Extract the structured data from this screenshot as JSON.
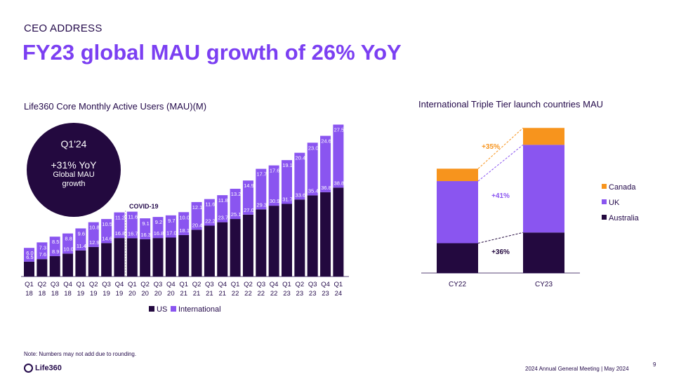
{
  "section_label": "CEO ADDRESS",
  "headline": "FY23 global MAU growth of 26% YoY",
  "badge": {
    "quarter": "Q1'24",
    "yoy": "+31% YoY",
    "line1": "Global MAU",
    "line2": "growth"
  },
  "covid_label": "COVID-19",
  "note": "Note: Numbers may not add due to rounding.",
  "logo_text": "Life360",
  "footer_text": "2024 Annual General Meeting  | May 2024",
  "page_number": "9",
  "colors": {
    "us": "#23093f",
    "international": "#8a55f0",
    "canada": "#f7941d",
    "headline": "#7b3ff2"
  },
  "chart_data": [
    {
      "type": "bar",
      "stacked": true,
      "title": "Life360 Core Monthly Active Users (MAU)(M)",
      "categories": [
        [
          "Q1",
          "18"
        ],
        [
          "Q2",
          "18"
        ],
        [
          "Q3",
          "18"
        ],
        [
          "Q4",
          "18"
        ],
        [
          "Q1",
          "19"
        ],
        [
          "Q2",
          "19"
        ],
        [
          "Q3",
          "19"
        ],
        [
          "Q4",
          "19"
        ],
        [
          "Q1",
          "20"
        ],
        [
          "Q2",
          "20"
        ],
        [
          "Q3",
          "20"
        ],
        [
          "Q4",
          "20"
        ],
        [
          "Q1",
          "21"
        ],
        [
          "Q2",
          "21"
        ],
        [
          "Q3",
          "21"
        ],
        [
          "Q4",
          "21"
        ],
        [
          "Q1",
          "22"
        ],
        [
          "Q2",
          "22"
        ],
        [
          "Q3",
          "22"
        ],
        [
          "Q4",
          "22"
        ],
        [
          "Q1",
          "23"
        ],
        [
          "Q2",
          "23"
        ],
        [
          "Q3",
          "23"
        ],
        [
          "Q4",
          "23"
        ],
        [
          "Q1",
          "24"
        ]
      ],
      "series": [
        {
          "name": "US",
          "values": [
            6.5,
            7.6,
            8.9,
            10.0,
            11.4,
            12.9,
            14.6,
            16.8,
            16.7,
            16.3,
            16.8,
            17.0,
            18.1,
            20.4,
            22.2,
            23.7,
            25.1,
            27.0,
            29.3,
            30.9,
            31.7,
            33.6,
            35.4,
            36.8,
            38.8
          ]
        },
        {
          "name": "International",
          "values": [
            6.0,
            7.3,
            8.5,
            8.8,
            9.6,
            10.8,
            10.5,
            11.2,
            11.6,
            9.1,
            9.2,
            9.7,
            10.0,
            12.1,
            11.6,
            11.8,
            13.2,
            14.9,
            17.7,
            17.6,
            19.1,
            20.4,
            23.0,
            24.6,
            27.5
          ]
        }
      ],
      "legend": [
        "US",
        "International"
      ],
      "legend_position": "bottom"
    },
    {
      "type": "bar",
      "stacked": true,
      "title": "International Triple Tier launch countries MAU",
      "categories": [
        "CY22",
        "CY23"
      ],
      "series": [
        {
          "name": "Australia",
          "values": [
            1.2,
            1.63
          ]
        },
        {
          "name": "UK",
          "values": [
            2.5,
            3.53
          ]
        },
        {
          "name": "Canada",
          "values": [
            0.5,
            0.68
          ]
        }
      ],
      "growth_labels": {
        "Australia": "+36%",
        "UK": "+41%",
        "Canada": "+35%"
      },
      "legend": [
        "Canada",
        "UK",
        "Australia"
      ],
      "legend_position": "right"
    }
  ]
}
